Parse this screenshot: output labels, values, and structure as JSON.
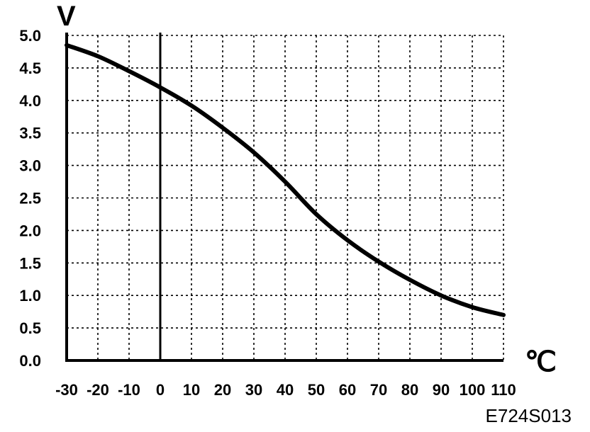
{
  "chart_data": {
    "type": "line",
    "title": "",
    "ylabel": "V",
    "xlabel": "℃",
    "xlim": [
      -30,
      110
    ],
    "ylim": [
      0,
      5
    ],
    "x_ticks": [
      "-30",
      "-20",
      "-10",
      "0",
      "10",
      "20",
      "30",
      "40",
      "50",
      "60",
      "70",
      "80",
      "90",
      "100",
      "110"
    ],
    "x_tick_values": [
      -30,
      -20,
      -10,
      0,
      10,
      20,
      30,
      40,
      50,
      60,
      70,
      80,
      90,
      100,
      110
    ],
    "y_ticks": [
      "0.0",
      "0.5",
      "1.0",
      "1.5",
      "2.0",
      "2.5",
      "3.0",
      "3.5",
      "4.0",
      "4.5",
      "5.0"
    ],
    "y_tick_values": [
      0,
      0.5,
      1,
      1.5,
      2,
      2.5,
      3,
      3.5,
      4,
      4.5,
      5
    ],
    "grid": true,
    "grid_style": "dotted",
    "reference_line_x": 0,
    "series": [
      {
        "x": [
          -30,
          -20,
          -10,
          0,
          10,
          20,
          30,
          40,
          50,
          60,
          70,
          80,
          90,
          100,
          110
        ],
        "y": [
          4.85,
          4.68,
          4.45,
          4.2,
          3.92,
          3.58,
          3.2,
          2.75,
          2.25,
          1.85,
          1.52,
          1.24,
          1.0,
          0.82,
          0.7
        ]
      }
    ]
  },
  "figure_code": "E724S013"
}
